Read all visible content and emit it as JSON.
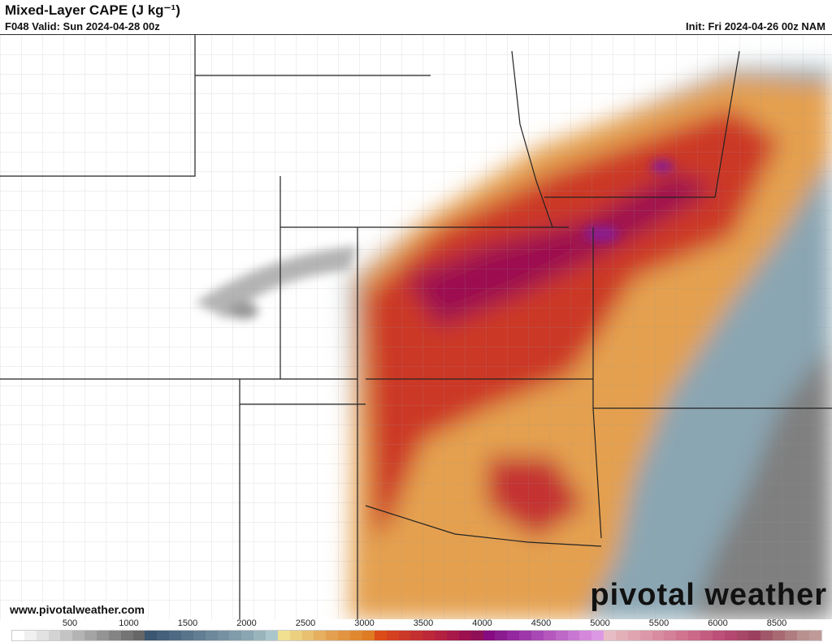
{
  "header": {
    "title": "Mixed-Layer CAPE (J kg⁻¹)",
    "valid": "F048 Valid: Sun 2024-04-28 00z",
    "init": "Init: Fri 2024-04-26 00z NAM"
  },
  "footer": {
    "url": "www.pivotalweather.com",
    "brand": "pivotal weather"
  },
  "colorbar": {
    "labels": [
      "500",
      "1000",
      "1500",
      "2000",
      "2500",
      "3000",
      "3500",
      "4000",
      "4500",
      "5000",
      "5500",
      "6000",
      "8500"
    ],
    "colors": [
      "#ffffff",
      "#f0f0f0",
      "#e2e2e2",
      "#d4d4d4",
      "#c4c4c4",
      "#b4b4b4",
      "#a4a4a4",
      "#949494",
      "#848484",
      "#747474",
      "#666666",
      "#3a5670",
      "#44607a",
      "#4e6a82",
      "#58748a",
      "#627e92",
      "#6c889a",
      "#7692a2",
      "#809caa",
      "#8aa6b2",
      "#9ab4bc",
      "#aac6cc",
      "#f0e090",
      "#ecd080",
      "#e8c070",
      "#e6b060",
      "#e4a050",
      "#e29440",
      "#e08830",
      "#de7c24",
      "#dc4c18",
      "#d44020",
      "#cc3828",
      "#c43030",
      "#bc2838",
      "#b42040",
      "#a81848",
      "#9c1050",
      "#901058",
      "#860a80",
      "#8a1c90",
      "#9428a0",
      "#9e38aa",
      "#a848b4",
      "#b458be",
      "#be68c8",
      "#c878d0",
      "#d488dc",
      "#dc98e4",
      "#e8bcc4",
      "#e4b0b8",
      "#e0a4b0",
      "#dc98a8",
      "#d88ca0",
      "#d48098",
      "#d07490",
      "#cc6888",
      "#c45c80",
      "#bc5078",
      "#b44870",
      "#a84868",
      "#9c4060",
      "#a05868",
      "#a86a72",
      "#b07c80",
      "#b8908e",
      "#c09a98"
    ]
  },
  "accent": {
    "low": "#8aa6b2",
    "mid": "#e08830",
    "high": "#9c1050",
    "extreme": "#8a1c90"
  }
}
